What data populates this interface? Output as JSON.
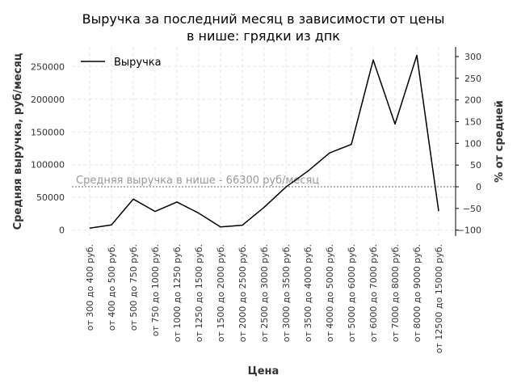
{
  "chart_data": {
    "type": "line",
    "title_line1": "Выручка за последний месяц в зависимости от цены",
    "title_line2": "в нише: грядки из дпк",
    "xlabel": "Цена",
    "ylabel_left": "Средняя выручка, руб/месяц",
    "ylabel_right": "% от средней",
    "categories": [
      "от 300 до 400 руб.",
      "от 400 до 500 руб.",
      "от 500 до 750 руб.",
      "от 750 до 1000 руб.",
      "от 1000 до 1250 руб.",
      "от 1250 до 1500 руб.",
      "от 1500 до 2000 руб.",
      "от 2000 до 2500 руб.",
      "от 2500 до 3000 руб.",
      "от 3000 до 3500 руб.",
      "от 3500 до 4000 руб.",
      "от 4000 до 5000 руб.",
      "от 5000 до 6000 руб.",
      "от 6000 до 7000 руб.",
      "от 7000 до 8000 руб.",
      "от 8000 до 9000 руб.",
      "от 12500 до 15000 руб."
    ],
    "series": [
      {
        "name": "Выручка",
        "color": "#000000",
        "values": [
          3000,
          8000,
          47500,
          28500,
          43000,
          26000,
          5000,
          7500,
          35000,
          66000,
          90000,
          118000,
          131000,
          260000,
          162000,
          267000,
          29000
        ]
      }
    ],
    "yticks_left": [
      "0",
      "50000",
      "100000",
      "150000",
      "200000",
      "250000"
    ],
    "yticks_right": [
      "−100",
      "−50",
      "0",
      "50",
      "100",
      "150",
      "200",
      "250",
      "300"
    ],
    "ylim_left": [
      -9000,
      280000
    ],
    "average_value": 66300,
    "average_label": "Средняя выручка в нише - 66300 руб/месяц",
    "legend_position": "upper-left",
    "grid": true
  }
}
